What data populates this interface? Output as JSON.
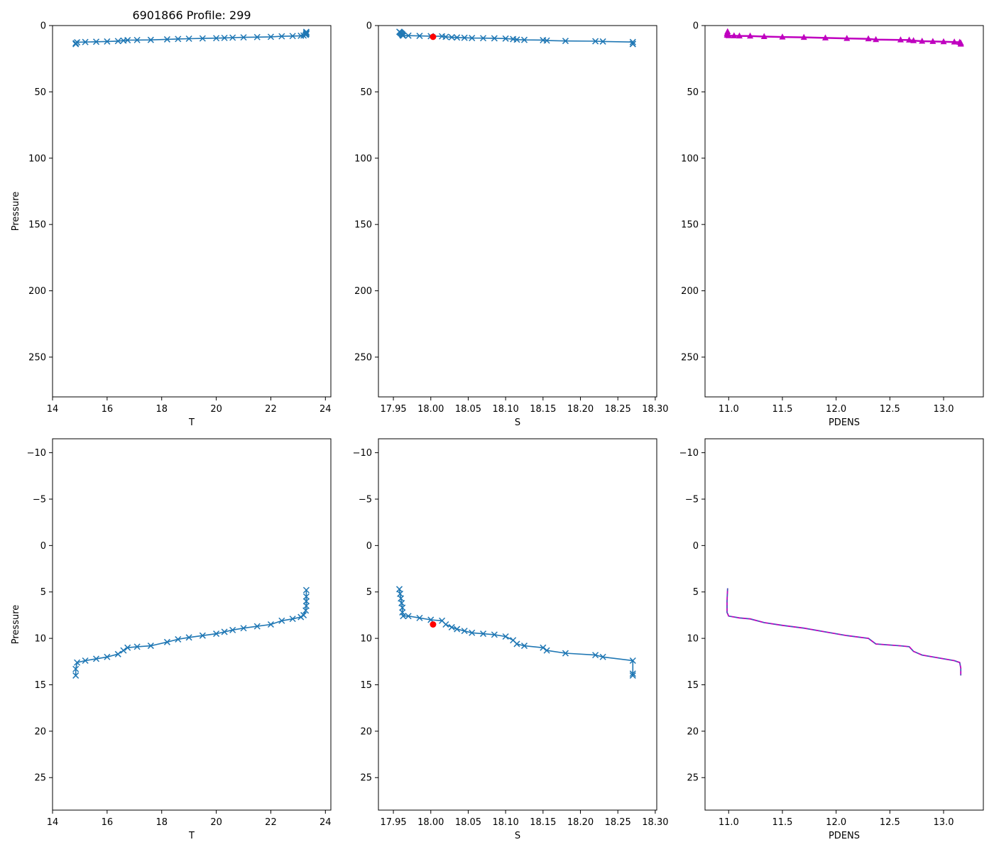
{
  "figure_title": "6901866 Profile: 299",
  "colors": {
    "series": "#1f77b4",
    "pdens": "#bf00bf",
    "pdens_dash": "#1f77b4",
    "flag": "#ff0000",
    "axis": "#000000",
    "background": "#ffffff"
  },
  "chart_data": [
    {
      "id": "top-temperature",
      "type": "line",
      "title": "6901866 Profile: 299",
      "xlabel": "T",
      "ylabel": "Pressure",
      "xlim": [
        14,
        24.2
      ],
      "ylim": [
        280,
        0
      ],
      "xticks": [
        14,
        16,
        18,
        20,
        22,
        24
      ],
      "xtick_labels": [
        "14",
        "16",
        "18",
        "20",
        "22",
        "24"
      ],
      "yticks": [
        0,
        50,
        100,
        150,
        200,
        250
      ],
      "ytick_labels": [
        "0",
        "50",
        "100",
        "150",
        "200",
        "250"
      ],
      "marker": "x",
      "series": [
        {
          "name": "T",
          "x": [
            14.85,
            14.85,
            14.9,
            15.2,
            15.6,
            16.0,
            16.4,
            16.6,
            16.75,
            17.1,
            17.6,
            18.2,
            18.6,
            19.0,
            19.5,
            20.0,
            20.3,
            20.6,
            21.0,
            21.5,
            22.0,
            22.4,
            22.8,
            23.1,
            23.2,
            23.28,
            23.3,
            23.3,
            23.3,
            23.3
          ],
          "y": [
            14.0,
            13.3,
            12.6,
            12.4,
            12.2,
            12.0,
            11.7,
            11.3,
            11.0,
            10.9,
            10.8,
            10.4,
            10.1,
            9.9,
            9.7,
            9.5,
            9.3,
            9.1,
            8.9,
            8.7,
            8.5,
            8.1,
            7.9,
            7.7,
            7.5,
            7.0,
            6.5,
            6.0,
            5.5,
            4.8
          ]
        }
      ]
    },
    {
      "id": "top-salinity",
      "type": "line",
      "xlabel": "S",
      "ylabel": "",
      "xlim": [
        17.93,
        18.302
      ],
      "ylim": [
        280,
        0
      ],
      "xticks": [
        17.95,
        18.0,
        18.05,
        18.1,
        18.15,
        18.2,
        18.25,
        18.3
      ],
      "xtick_labels": [
        "17.95",
        "18.00",
        "18.05",
        "18.10",
        "18.15",
        "18.20",
        "18.25",
        "18.30"
      ],
      "yticks": [
        0,
        50,
        100,
        150,
        200,
        250
      ],
      "ytick_labels": [
        "0",
        "50",
        "100",
        "150",
        "200",
        "250"
      ],
      "marker": "x",
      "series": [
        {
          "name": "S",
          "x": [
            17.958,
            17.959,
            17.96,
            17.961,
            17.962,
            17.962,
            17.963,
            17.97,
            17.985,
            18.0,
            18.015,
            18.02,
            18.028,
            18.035,
            18.045,
            18.055,
            18.07,
            18.085,
            18.1,
            18.11,
            18.115,
            18.125,
            18.15,
            18.155,
            18.18,
            18.22,
            18.23,
            18.27,
            18.27,
            18.27
          ],
          "y": [
            4.7,
            5.2,
            5.7,
            6.2,
            6.7,
            7.2,
            7.6,
            7.6,
            7.8,
            8.0,
            8.1,
            8.5,
            8.8,
            9.0,
            9.2,
            9.4,
            9.5,
            9.6,
            9.8,
            10.2,
            10.6,
            10.8,
            11.0,
            11.3,
            11.6,
            11.8,
            12.0,
            12.4,
            13.8,
            14.0
          ]
        }
      ],
      "flagged_points": [
        {
          "x": 18.003,
          "y": 8.5
        }
      ]
    },
    {
      "id": "top-pdens",
      "type": "line",
      "xlabel": "PDENS",
      "ylabel": "",
      "xlim": [
        10.78,
        13.37
      ],
      "ylim": [
        280,
        0
      ],
      "xticks": [
        11.0,
        11.5,
        12.0,
        12.5,
        13.0
      ],
      "xtick_labels": [
        "11.0",
        "11.5",
        "12.0",
        "12.5",
        "13.0"
      ],
      "yticks": [
        0,
        50,
        100,
        150,
        200,
        250
      ],
      "ytick_labels": [
        "0",
        "50",
        "100",
        "150",
        "200",
        "250"
      ],
      "marker": "triangle",
      "series": [
        {
          "name": "PDENS",
          "x": [
            10.99,
            10.985,
            10.985,
            11.0,
            11.05,
            11.1,
            11.2,
            11.33,
            11.5,
            11.7,
            11.9,
            12.1,
            12.3,
            12.37,
            12.6,
            12.68,
            12.72,
            12.8,
            12.9,
            13.0,
            13.1,
            13.15,
            13.16,
            13.16
          ],
          "y": [
            4.6,
            6.0,
            7.2,
            7.6,
            7.7,
            7.8,
            7.9,
            8.3,
            8.6,
            8.9,
            9.3,
            9.7,
            10.0,
            10.6,
            10.8,
            10.9,
            11.4,
            11.8,
            12.0,
            12.2,
            12.4,
            12.6,
            13.2,
            14.0
          ]
        }
      ]
    },
    {
      "id": "bottom-temperature",
      "type": "line",
      "xlabel": "T",
      "ylabel": "Pressure",
      "xlim": [
        14,
        24.2
      ],
      "ylim": [
        28.5,
        -11.5
      ],
      "xticks": [
        14,
        16,
        18,
        20,
        22,
        24
      ],
      "xtick_labels": [
        "14",
        "16",
        "18",
        "20",
        "22",
        "24"
      ],
      "yticks": [
        -10,
        -5,
        0,
        5,
        10,
        15,
        20,
        25
      ],
      "ytick_labels": [
        "−10",
        "−5",
        "0",
        "5",
        "10",
        "15",
        "20",
        "25"
      ],
      "marker": "x",
      "series": [
        {
          "name": "T",
          "x": [
            14.85,
            14.85,
            14.9,
            15.2,
            15.6,
            16.0,
            16.4,
            16.6,
            16.75,
            17.1,
            17.6,
            18.2,
            18.6,
            19.0,
            19.5,
            20.0,
            20.3,
            20.6,
            21.0,
            21.5,
            22.0,
            22.4,
            22.8,
            23.1,
            23.2,
            23.28,
            23.3,
            23.3,
            23.3,
            23.3
          ],
          "y": [
            14.0,
            13.3,
            12.6,
            12.4,
            12.2,
            12.0,
            11.7,
            11.3,
            11.0,
            10.9,
            10.8,
            10.4,
            10.1,
            9.9,
            9.7,
            9.5,
            9.3,
            9.1,
            8.9,
            8.7,
            8.5,
            8.1,
            7.9,
            7.7,
            7.5,
            7.0,
            6.5,
            6.0,
            5.5,
            4.8
          ]
        }
      ]
    },
    {
      "id": "bottom-salinity",
      "type": "line",
      "xlabel": "S",
      "ylabel": "",
      "xlim": [
        17.93,
        18.302
      ],
      "ylim": [
        28.5,
        -11.5
      ],
      "xticks": [
        17.95,
        18.0,
        18.05,
        18.1,
        18.15,
        18.2,
        18.25,
        18.3
      ],
      "xtick_labels": [
        "17.95",
        "18.00",
        "18.05",
        "18.10",
        "18.15",
        "18.20",
        "18.25",
        "18.30"
      ],
      "yticks": [
        -10,
        -5,
        0,
        5,
        10,
        15,
        20,
        25
      ],
      "ytick_labels": [
        "−10",
        "−5",
        "0",
        "5",
        "10",
        "15",
        "20",
        "25"
      ],
      "marker": "x",
      "series": [
        {
          "name": "S",
          "x": [
            17.958,
            17.959,
            17.96,
            17.961,
            17.962,
            17.962,
            17.963,
            17.97,
            17.985,
            18.0,
            18.015,
            18.02,
            18.028,
            18.035,
            18.045,
            18.055,
            18.07,
            18.085,
            18.1,
            18.11,
            18.115,
            18.125,
            18.15,
            18.155,
            18.18,
            18.22,
            18.23,
            18.27,
            18.27,
            18.27
          ],
          "y": [
            4.7,
            5.2,
            5.7,
            6.2,
            6.7,
            7.2,
            7.6,
            7.6,
            7.8,
            8.0,
            8.1,
            8.5,
            8.8,
            9.0,
            9.2,
            9.4,
            9.5,
            9.6,
            9.8,
            10.2,
            10.6,
            10.8,
            11.0,
            11.3,
            11.6,
            11.8,
            12.0,
            12.4,
            13.8,
            14.0
          ]
        }
      ],
      "flagged_points": [
        {
          "x": 18.003,
          "y": 8.5
        }
      ]
    },
    {
      "id": "bottom-pdens",
      "type": "line",
      "xlabel": "PDENS",
      "ylabel": "",
      "xlim": [
        10.78,
        13.37
      ],
      "ylim": [
        28.5,
        -11.5
      ],
      "xticks": [
        11.0,
        11.5,
        12.0,
        12.5,
        13.0
      ],
      "xtick_labels": [
        "11.0",
        "11.5",
        "12.0",
        "12.5",
        "13.0"
      ],
      "yticks": [
        -10,
        -5,
        0,
        5,
        10,
        15,
        20,
        25
      ],
      "ytick_labels": [
        "−10",
        "−5",
        "0",
        "5",
        "10",
        "15",
        "20",
        "25"
      ],
      "marker": "none",
      "series": [
        {
          "name": "PDENS",
          "x": [
            10.99,
            10.985,
            10.985,
            11.0,
            11.05,
            11.1,
            11.2,
            11.33,
            11.5,
            11.7,
            11.9,
            12.1,
            12.3,
            12.37,
            12.6,
            12.68,
            12.72,
            12.8,
            12.9,
            13.0,
            13.1,
            13.15,
            13.16,
            13.16
          ],
          "y": [
            4.6,
            6.0,
            7.2,
            7.6,
            7.7,
            7.8,
            7.9,
            8.3,
            8.6,
            8.9,
            9.3,
            9.7,
            10.0,
            10.6,
            10.8,
            10.9,
            11.4,
            11.8,
            12.0,
            12.2,
            12.4,
            12.6,
            13.2,
            14.0
          ]
        }
      ]
    }
  ]
}
